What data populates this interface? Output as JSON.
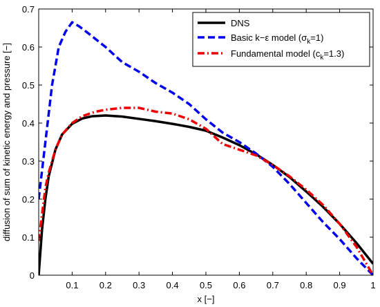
{
  "chart_data": {
    "type": "line",
    "xlabel": "x [−]",
    "ylabel": "diffusion of sum of kinetic energy and pressure [−]",
    "xlim": [
      0,
      1
    ],
    "ylim": [
      0,
      0.7
    ],
    "xticks": [
      "0.1",
      "0.2",
      "0.3",
      "0.4",
      "0.5",
      "0.6",
      "0.7",
      "0.8",
      "0.9",
      "1"
    ],
    "yticks": [
      "0",
      "0.1",
      "0.2",
      "0.3",
      "0.4",
      "0.5",
      "0.6",
      "0.7"
    ],
    "grid": false,
    "legend": {
      "position": "top-right",
      "entries": [
        {
          "text": "DNS"
        },
        {
          "text_main": "Basic k−ε model (σ",
          "subscript": "k",
          "text_tail": "=1)"
        },
        {
          "text_main": "Fundamental model (c",
          "subscript": "k",
          "text_tail": "=1.3)"
        }
      ]
    },
    "series": [
      {
        "name": "DNS",
        "color": "#000000",
        "style": "solid",
        "x": [
          0.0,
          0.01,
          0.02,
          0.03,
          0.05,
          0.07,
          0.1,
          0.13,
          0.16,
          0.2,
          0.25,
          0.3,
          0.35,
          0.4,
          0.45,
          0.5,
          0.55,
          0.6,
          0.65,
          0.7,
          0.75,
          0.8,
          0.85,
          0.9,
          0.95,
          1.0
        ],
        "y": [
          0.0,
          0.12,
          0.2,
          0.26,
          0.33,
          0.37,
          0.398,
          0.412,
          0.418,
          0.42,
          0.417,
          0.411,
          0.405,
          0.398,
          0.39,
          0.38,
          0.362,
          0.342,
          0.318,
          0.29,
          0.258,
          0.22,
          0.18,
          0.135,
          0.085,
          0.03
        ]
      },
      {
        "name": "Basic k−ε model (σk=1)",
        "color": "#0000ee",
        "style": "dashed",
        "x": [
          0.0,
          0.02,
          0.04,
          0.06,
          0.08,
          0.1,
          0.12,
          0.15,
          0.2,
          0.25,
          0.3,
          0.35,
          0.4,
          0.45,
          0.5,
          0.55,
          0.6,
          0.65,
          0.7,
          0.75,
          0.8,
          0.85,
          0.9,
          0.95,
          1.0
        ],
        "y": [
          0.2,
          0.35,
          0.5,
          0.6,
          0.64,
          0.665,
          0.655,
          0.635,
          0.6,
          0.56,
          0.535,
          0.505,
          0.48,
          0.45,
          0.41,
          0.375,
          0.35,
          0.32,
          0.285,
          0.24,
          0.19,
          0.14,
          0.095,
          0.045,
          0.0
        ]
      },
      {
        "name": "Fundamental model (ck=1.3)",
        "color": "#ee0000",
        "style": "dashdot",
        "x": [
          0.0,
          0.01,
          0.02,
          0.03,
          0.05,
          0.07,
          0.1,
          0.13,
          0.17,
          0.2,
          0.25,
          0.3,
          0.35,
          0.4,
          0.45,
          0.5,
          0.55,
          0.6,
          0.65,
          0.7,
          0.75,
          0.8,
          0.85,
          0.9,
          0.95,
          1.0
        ],
        "y": [
          0.09,
          0.16,
          0.23,
          0.27,
          0.33,
          0.37,
          0.4,
          0.418,
          0.43,
          0.435,
          0.44,
          0.44,
          0.43,
          0.425,
          0.41,
          0.385,
          0.345,
          0.33,
          0.315,
          0.29,
          0.26,
          0.225,
          0.185,
          0.135,
          0.075,
          0.0
        ]
      }
    ]
  }
}
